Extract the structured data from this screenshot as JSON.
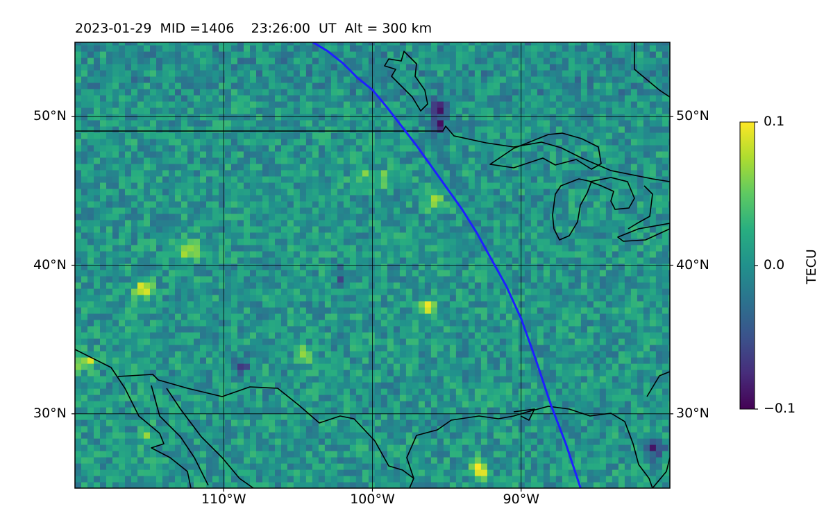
{
  "title": "2023-01-29  MID =1406    23:26:00  UT  Alt = 300 km",
  "map": {
    "lon_range": [
      -120,
      -80
    ],
    "lat_range": [
      25,
      55
    ],
    "lat_ticks": [
      {
        "value": 50,
        "label": "50°N"
      },
      {
        "value": 40,
        "label": "40°N"
      },
      {
        "value": 30,
        "label": "30°N"
      }
    ],
    "lon_ticks": [
      {
        "value": -110,
        "label": "110°W"
      },
      {
        "value": -100,
        "label": "100°W"
      },
      {
        "value": -90,
        "label": "90°W"
      }
    ],
    "gridlines": true,
    "track_color": "#1f1fff",
    "track": [
      [
        -104,
        55.0
      ],
      [
        -103,
        54.4
      ],
      [
        -102,
        53.6
      ],
      [
        -101,
        52.6
      ],
      [
        -100,
        51.8
      ],
      [
        -99,
        50.6
      ],
      [
        -98,
        49.3
      ],
      [
        -97,
        48.0
      ],
      [
        -96,
        46.6
      ],
      [
        -95,
        45.2
      ],
      [
        -94,
        43.8
      ],
      [
        -93,
        42.2
      ],
      [
        -92,
        40.4
      ],
      [
        -91,
        38.6
      ],
      [
        -90,
        36.4
      ],
      [
        -89,
        33.6
      ],
      [
        -88,
        30.6
      ],
      [
        -87,
        28.0
      ],
      [
        -86,
        25.0
      ]
    ],
    "colormap": "viridis",
    "hotspots": [
      [
        -112.4,
        40.8,
        0.1
      ],
      [
        -115.6,
        38.2,
        0.09
      ],
      [
        -119.5,
        33.3,
        0.09
      ],
      [
        -93.0,
        26.0,
        0.1
      ],
      [
        -96.5,
        37.0,
        0.08
      ],
      [
        -104.8,
        33.8,
        0.07
      ],
      [
        -96.0,
        44.0,
        0.07
      ],
      [
        -99.5,
        45.6,
        0.06
      ],
      [
        -101,
        45.8,
        0.06
      ],
      [
        -115.3,
        28.3,
        0.06
      ]
    ],
    "coldspots": [
      [
        -95.7,
        50.3,
        -0.1
      ],
      [
        -95.7,
        49.2,
        -0.08
      ],
      [
        -81.2,
        27.5,
        -0.09
      ],
      [
        -109,
        33.2,
        -0.06
      ],
      [
        -102.2,
        39.1,
        -0.06
      ]
    ]
  },
  "colorbar": {
    "min": -0.1,
    "max": 0.1,
    "ticks": [
      {
        "value": 0.1,
        "label": "0.1"
      },
      {
        "value": 0.0,
        "label": "0.0"
      },
      {
        "value": -0.1,
        "label": "−0.1"
      }
    ],
    "label": "TECU"
  }
}
